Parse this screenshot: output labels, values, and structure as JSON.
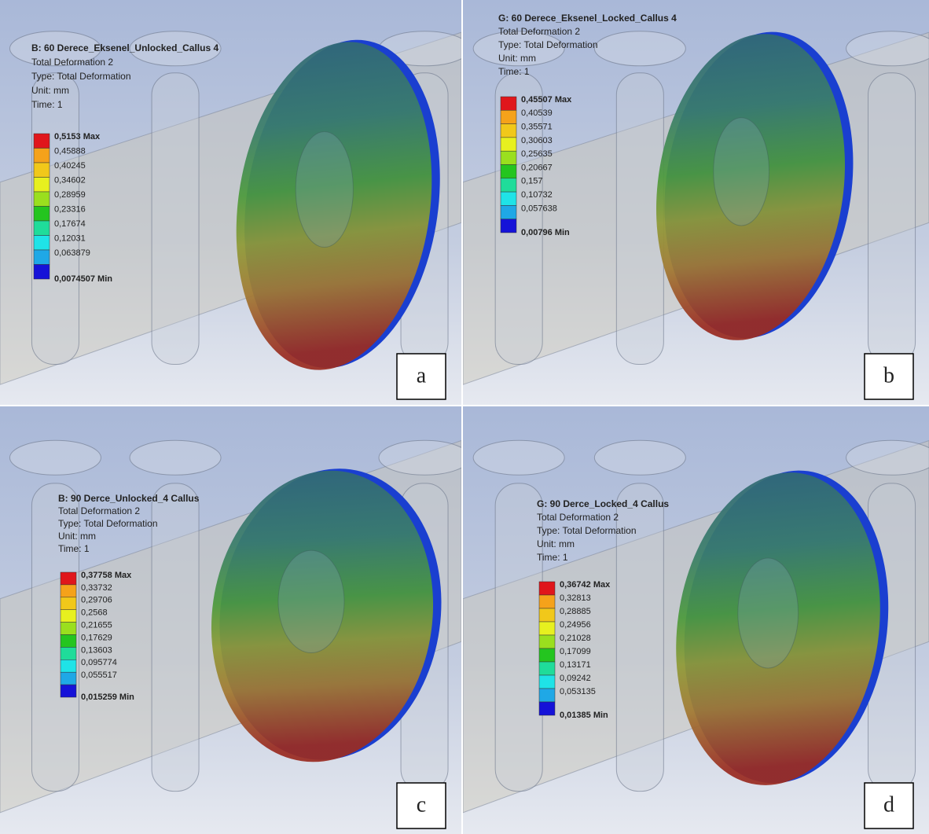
{
  "panels": [
    {
      "letter": "a",
      "title": "B: 60 Derece_Eksenel_Unlocked_Callus 4",
      "info": [
        "Total Deformation 2",
        "Type: Total Deformation",
        "Unit: mm",
        "Time: 1"
      ],
      "legend": [
        "0,5153 Max",
        "0,45888",
        "0,40245",
        "0,34602",
        "0,28959",
        "0,23316",
        "0,17674",
        "0,12031",
        "0,063879",
        "0,0074507 Min"
      ]
    },
    {
      "letter": "b",
      "title": "G: 60 Derece_Eksenel_Locked_Callus 4",
      "info": [
        "Total Deformation 2",
        "Type: Total Deformation",
        "Unit: mm",
        "Time: 1"
      ],
      "legend": [
        "0,45507 Max",
        "0,40539",
        "0,35571",
        "0,30603",
        "0,25635",
        "0,20667",
        "0,157",
        "0,10732",
        "0,057638",
        "0,00796 Min"
      ]
    },
    {
      "letter": "c",
      "title": "B: 90 Derce_Unlocked_4 Callus",
      "info": [
        "Total Deformation 2",
        "Type: Total Deformation",
        "Unit: mm",
        "Time: 1"
      ],
      "legend": [
        "0,37758 Max",
        "0,33732",
        "0,29706",
        "0,2568",
        "0,21655",
        "0,17629",
        "0,13603",
        "0,095774",
        "0,055517",
        "0,015259 Min"
      ]
    },
    {
      "letter": "d",
      "title": "G: 90 Derce_Locked_4 Callus",
      "info": [
        "Total Deformation 2",
        "Type: Total Deformation",
        "Unit: mm",
        "Time: 1"
      ],
      "legend": [
        "0,36742 Max",
        "0,32813",
        "0,28885",
        "0,24956",
        "0,21028",
        "0,17099",
        "0,13171",
        "0,09242",
        "0,053135",
        "0,01385 Min"
      ]
    }
  ]
}
